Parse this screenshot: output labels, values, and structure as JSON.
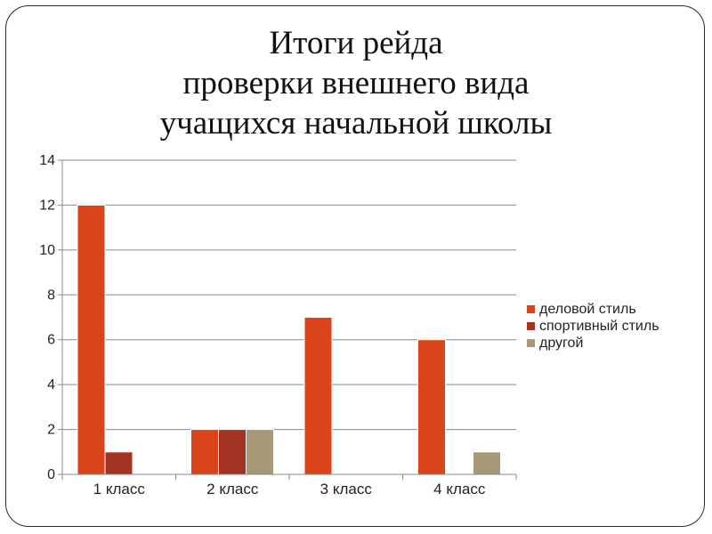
{
  "title_lines": [
    "Итоги рейда",
    "проверки внешнего вида",
    "учащихся начальной школы"
  ],
  "chart_data": {
    "type": "bar",
    "title": "Итоги рейда проверки внешнего вида учащихся начальной школы",
    "categories": [
      "1 класс",
      "2 класс",
      "3 класс",
      "4 класс"
    ],
    "series": [
      {
        "name": "деловой стиль",
        "color": "#d9441a",
        "values": [
          12,
          2,
          7,
          6
        ]
      },
      {
        "name": "спортивный стиль",
        "color": "#a33222",
        "values": [
          1,
          2,
          0,
          0
        ]
      },
      {
        "name": "другой",
        "color": "#a8987a",
        "values": [
          0,
          2,
          0,
          1
        ]
      }
    ],
    "ylim": [
      0,
      14
    ],
    "yticks": [
      "0",
      "2",
      "4",
      "6",
      "8",
      "10",
      "12",
      "14"
    ],
    "grid": true,
    "legend_position": "right"
  }
}
